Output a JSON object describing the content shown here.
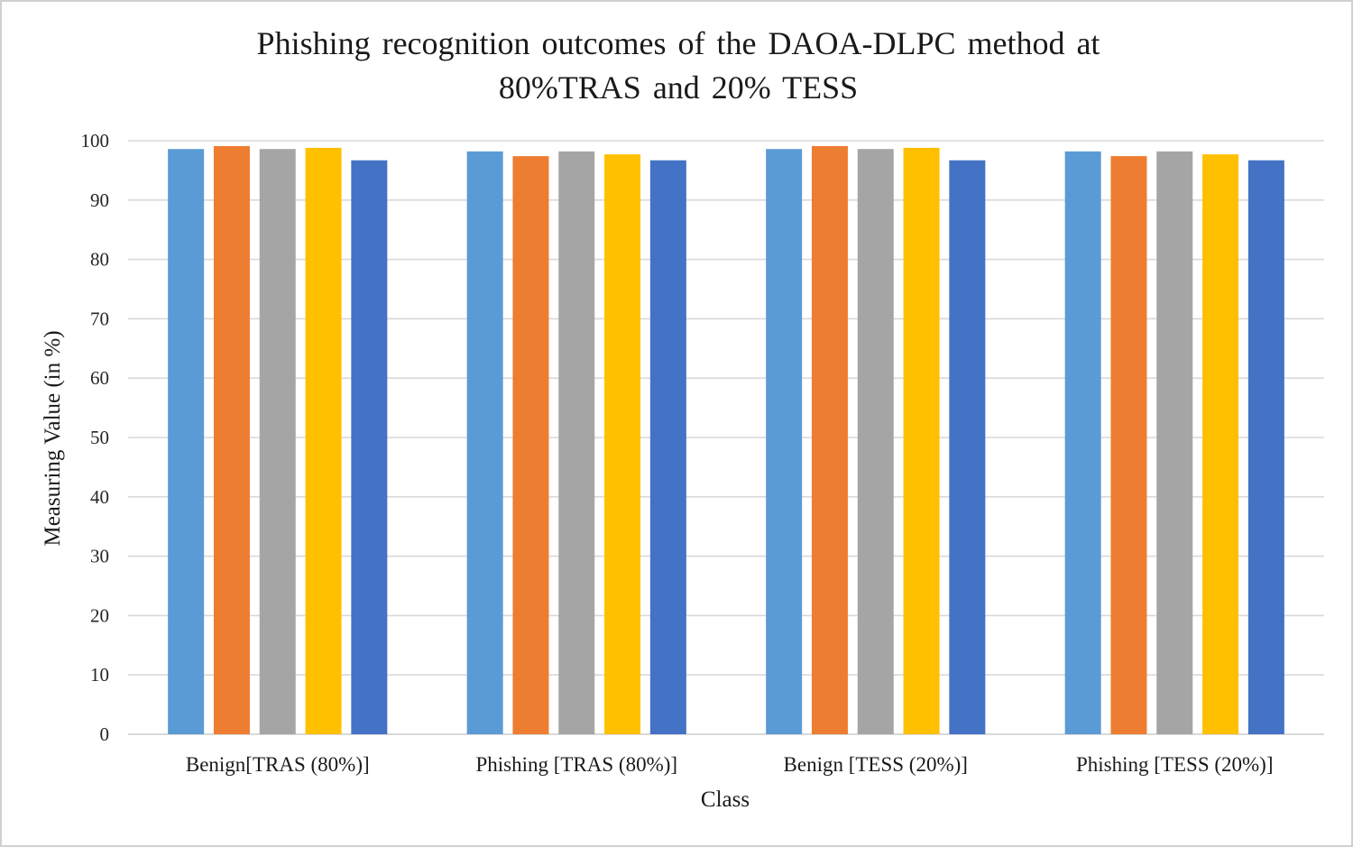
{
  "chart_data": {
    "type": "bar",
    "title_lines": [
      "Phishing recognition outcomes of the DAOA-DLPC method at",
      "80%TRAS and 20% TESS"
    ],
    "xlabel": "Class",
    "ylabel": "Measuring Value (in %)",
    "ylim": [
      0,
      100
    ],
    "yticks": [
      0,
      10,
      20,
      30,
      40,
      50,
      60,
      70,
      80,
      90,
      100
    ],
    "grid": true,
    "legend": "none",
    "categories": [
      "Benign[TRAS (80%)]",
      "Phishing [TRAS (80%)]",
      "Benign [TESS (20%)]",
      "Phishing [TESS (20%)]"
    ],
    "series": [
      {
        "color": "#5B9BD5",
        "values": [
          98.6,
          98.2,
          98.6,
          98.2
        ]
      },
      {
        "color": "#ED7D31",
        "values": [
          99.1,
          97.4,
          99.1,
          97.4
        ]
      },
      {
        "color": "#A5A5A5",
        "values": [
          98.6,
          98.2,
          98.6,
          98.2
        ]
      },
      {
        "color": "#FFC000",
        "values": [
          98.8,
          97.7,
          98.8,
          97.7
        ]
      },
      {
        "color": "#4472C4",
        "values": [
          96.7,
          96.7,
          96.7,
          96.7
        ]
      }
    ]
  },
  "colors": {
    "gridline": "#d9d9d9",
    "baseline": "#d9d9d9",
    "frame_border": "#d0d0d0"
  }
}
